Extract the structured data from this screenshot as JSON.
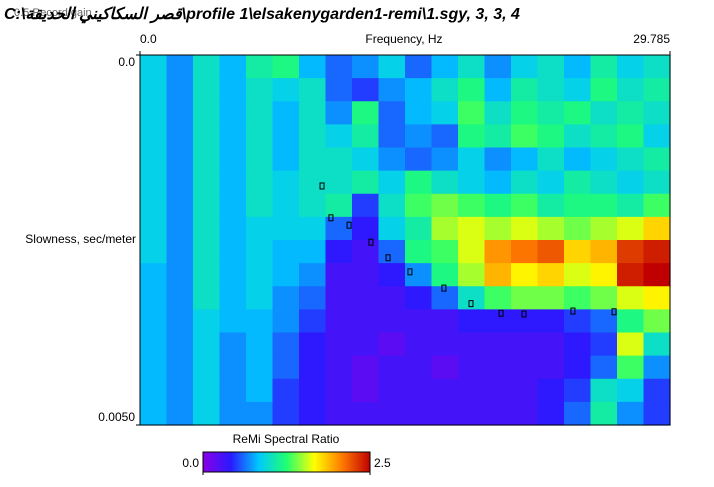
{
  "title": "C:\\قصر السكاكيني الحديقة\\profile 1\\elsakenygarden1-remi\\1.sgy, 3, 3, 4",
  "overlay_label": "0.5 Record gain",
  "chart_data": {
    "type": "heatmap",
    "x_axis_label": "Frequency, Hz",
    "y_axis_label": "Slowness, sec/meter",
    "x_axis_position": "top",
    "y_inverted": true,
    "xlim": [
      0,
      29.785
    ],
    "xticks": [
      {
        "value": 0,
        "label": "0.0"
      },
      29.785
    ],
    "ylim": [
      0,
      0.005
    ],
    "yticks": [
      {
        "value": 0,
        "label": "0.0"
      },
      {
        "value": 0.005,
        "label": "0.0050"
      }
    ],
    "z": [
      [
        0.9,
        0.7,
        1.0,
        0.8,
        1.1,
        1.2,
        0.8,
        0.6,
        0.7,
        0.9,
        0.6,
        0.8,
        1.0,
        0.7,
        0.9,
        1.0,
        0.8,
        1.1,
        0.9,
        1.0
      ],
      [
        0.9,
        0.7,
        1.0,
        0.8,
        1.0,
        0.9,
        1.0,
        0.6,
        0.5,
        0.7,
        0.8,
        1.0,
        1.2,
        0.8,
        1.1,
        1.0,
        0.9,
        1.2,
        1.0,
        1.1
      ],
      [
        0.9,
        0.7,
        1.0,
        0.8,
        1.0,
        0.8,
        1.0,
        0.7,
        1.2,
        0.6,
        0.8,
        0.9,
        1.3,
        1.0,
        1.2,
        1.1,
        1.2,
        1.0,
        1.1,
        1.0
      ],
      [
        0.9,
        0.7,
        1.0,
        0.8,
        1.0,
        0.8,
        1.0,
        0.9,
        1.1,
        0.6,
        0.7,
        0.6,
        1.2,
        1.1,
        1.3,
        1.2,
        1.0,
        1.1,
        1.2,
        0.9
      ],
      [
        0.9,
        0.7,
        1.0,
        0.8,
        1.0,
        0.8,
        1.0,
        1.0,
        0.9,
        0.7,
        0.6,
        0.7,
        0.9,
        0.7,
        0.8,
        1.0,
        0.8,
        0.9,
        1.0,
        1.1
      ],
      [
        0.9,
        0.7,
        1.0,
        0.8,
        1.0,
        0.9,
        1.0,
        1.0,
        1.1,
        0.9,
        1.2,
        1.0,
        0.9,
        0.8,
        1.0,
        0.9,
        1.1,
        1.0,
        0.9,
        1.0
      ],
      [
        0.9,
        0.7,
        1.0,
        0.8,
        1.0,
        0.9,
        1.0,
        1.1,
        0.5,
        1.0,
        1.3,
        1.4,
        1.3,
        1.2,
        1.3,
        1.1,
        1.2,
        1.2,
        1.1,
        1.3
      ],
      [
        0.9,
        0.7,
        1.0,
        0.8,
        0.9,
        0.9,
        0.9,
        0.6,
        0.4,
        0.9,
        1.1,
        1.5,
        1.6,
        1.5,
        1.6,
        1.5,
        1.4,
        1.5,
        1.6,
        1.8
      ],
      [
        0.9,
        0.7,
        1.0,
        0.8,
        0.9,
        0.8,
        0.8,
        0.4,
        0.3,
        0.6,
        1.2,
        1.3,
        1.6,
        2.0,
        2.1,
        2.2,
        1.8,
        1.9,
        2.3,
        2.4
      ],
      [
        0.8,
        0.7,
        1.0,
        0.8,
        0.9,
        0.8,
        0.7,
        0.3,
        0.3,
        0.4,
        0.7,
        1.2,
        1.5,
        1.9,
        1.7,
        1.8,
        1.6,
        1.7,
        2.4,
        2.5
      ],
      [
        0.8,
        0.7,
        1.0,
        0.8,
        0.9,
        0.7,
        0.6,
        0.3,
        0.3,
        0.3,
        0.4,
        0.6,
        1.0,
        1.3,
        1.4,
        1.4,
        1.3,
        1.4,
        1.6,
        1.7
      ],
      [
        0.8,
        0.7,
        0.9,
        0.8,
        0.8,
        0.7,
        0.5,
        0.3,
        0.3,
        0.3,
        0.3,
        0.3,
        0.4,
        0.4,
        0.4,
        0.4,
        0.5,
        0.6,
        1.2,
        1.4
      ],
      [
        0.8,
        0.7,
        0.9,
        0.7,
        0.8,
        0.6,
        0.4,
        0.3,
        0.3,
        0.2,
        0.3,
        0.3,
        0.3,
        0.3,
        0.3,
        0.3,
        0.4,
        0.5,
        1.6,
        1.0
      ],
      [
        0.8,
        0.7,
        0.9,
        0.7,
        0.8,
        0.6,
        0.4,
        0.3,
        0.2,
        0.3,
        0.3,
        0.2,
        0.3,
        0.3,
        0.3,
        0.3,
        0.4,
        0.6,
        1.3,
        0.7
      ],
      [
        0.8,
        0.7,
        0.9,
        0.7,
        0.8,
        0.5,
        0.4,
        0.3,
        0.2,
        0.3,
        0.3,
        0.3,
        0.3,
        0.3,
        0.3,
        0.4,
        0.5,
        1.0,
        0.9,
        0.5
      ],
      [
        0.8,
        0.7,
        0.9,
        0.7,
        0.7,
        0.5,
        0.4,
        0.3,
        0.3,
        0.3,
        0.3,
        0.3,
        0.3,
        0.3,
        0.3,
        0.4,
        0.6,
        1.1,
        0.7,
        0.5
      ]
    ],
    "colorbar": {
      "label": "ReMi Spectral Ratio",
      "range": [
        0,
        2.5
      ],
      "ticks": [
        {
          "value": 0,
          "label": "0.0"
        },
        2.5
      ],
      "colors": [
        "#8a00e6",
        "#2a1aff",
        "#00c8ff",
        "#20ff70",
        "#ffff00",
        "#ff7a00",
        "#c00000"
      ]
    },
    "picks": {
      "color": "#000000",
      "x": [
        10.23,
        10.73,
        11.75,
        12.98,
        13.94,
        15.17,
        17.08,
        18.6,
        20.29,
        21.58,
        24.33,
        26.64
      ],
      "y": [
        0.00177,
        0.0022,
        0.0023,
        0.00253,
        0.00274,
        0.00293,
        0.00315,
        0.00336,
        0.00349,
        0.0035,
        0.00346,
        0.00347
      ]
    }
  }
}
